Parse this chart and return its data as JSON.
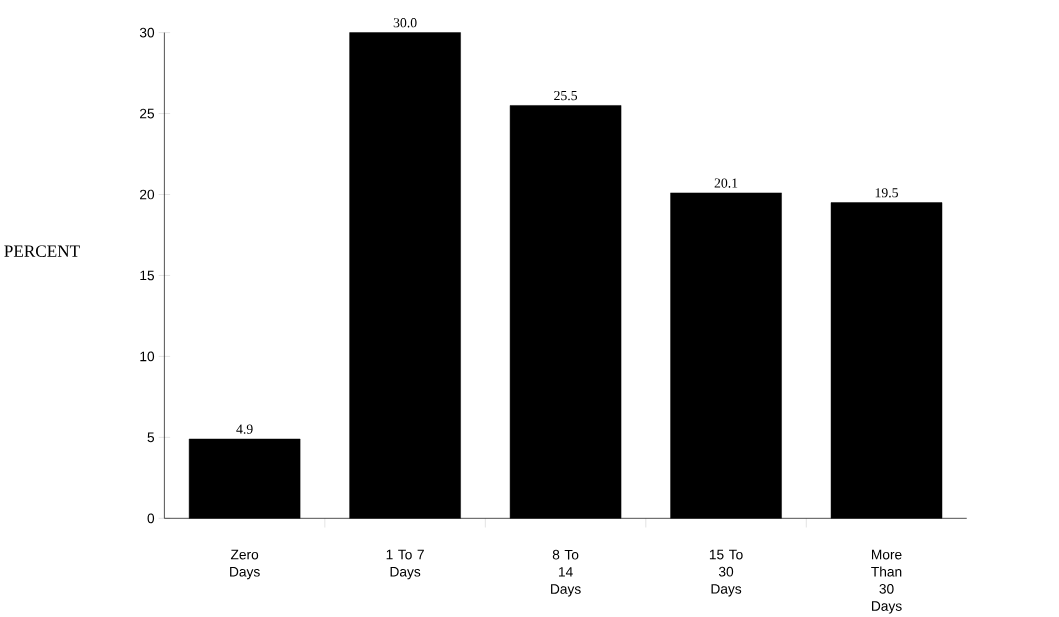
{
  "chart_data": {
    "type": "bar",
    "ylabel": "PERCENT",
    "categories": [
      "Zero Days",
      "1 To 7 Days",
      "8 To 14 Days",
      "15 To 30 Days",
      "More Than 30 Days"
    ],
    "values": [
      4.9,
      30.0,
      25.5,
      20.1,
      19.5
    ],
    "value_labels": [
      "4.9",
      "30.0",
      "25.5",
      "20.1",
      "19.5"
    ],
    "color": "#000000",
    "ylim": [
      0,
      30
    ],
    "yticks": [
      0,
      5,
      10,
      15,
      20,
      25,
      30
    ],
    "grid": false
  }
}
